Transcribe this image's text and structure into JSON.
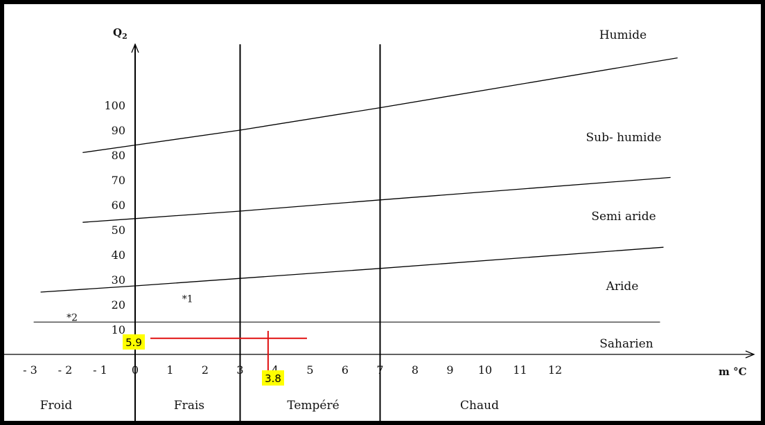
{
  "chart_data": {
    "type": "line",
    "title": "",
    "xlabel": "m °C",
    "ylabel": "Q2",
    "x_ticks": [
      "- 3",
      "- 2",
      "- 1",
      "0",
      "1",
      "2",
      "3",
      "4",
      "5",
      "6",
      "7",
      "8",
      "9",
      "10",
      "11",
      "12"
    ],
    "x_tick_values": [
      -3,
      -2,
      -1,
      0,
      1,
      2,
      3,
      4,
      5,
      6,
      7,
      8,
      9,
      10,
      11,
      12
    ],
    "y_ticks": [
      10,
      20,
      30,
      40,
      50,
      60,
      70,
      80,
      90,
      100
    ],
    "xlim": [
      -3.8,
      17.3
    ],
    "ylim": [
      0,
      120
    ],
    "grid": false,
    "series": [
      {
        "x": [
          -1.5,
          0,
          3,
          7,
          15.5
        ],
        "y": [
          81,
          84,
          90,
          99,
          119
        ]
      },
      {
        "x": [
          -1.5,
          0,
          3,
          7,
          15.3
        ],
        "y": [
          53,
          54.5,
          57.5,
          62,
          71
        ]
      },
      {
        "x": [
          -2.7,
          0,
          3,
          7,
          15.1
        ],
        "y": [
          25,
          27.5,
          30.5,
          34.5,
          43
        ]
      },
      {
        "x": [
          -2.9,
          15
        ],
        "y": [
          13,
          13
        ]
      }
    ],
    "vertical_lines": [
      3,
      7
    ],
    "bioclimatic_zones": [
      "Humide",
      "Sub- humide",
      "Semi aride",
      "Aride",
      "Saharien"
    ],
    "temperature_zones": [
      "Froid",
      "Frais",
      "Tempéré",
      "Chaud"
    ],
    "markers": [
      {
        "label": "*1",
        "x": 1.5,
        "y": 21
      },
      {
        "label": "*2",
        "x": -1.8,
        "y": 13.5
      }
    ],
    "highlight": {
      "color": "#e01010",
      "q2": 5.9,
      "m": 3.8,
      "q2_label": "5.9",
      "m_label": "3.8"
    }
  }
}
